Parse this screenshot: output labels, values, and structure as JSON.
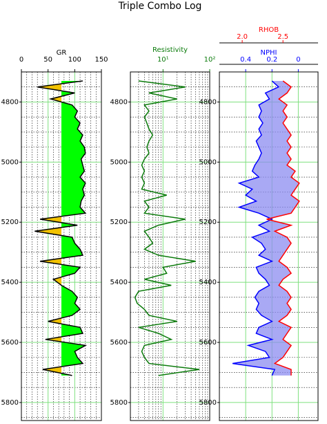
{
  "title": "Triple Combo Log",
  "chart_data": [
    {
      "type": "line",
      "xlabel": "GR",
      "xlim": [
        0,
        150
      ],
      "xticks": [
        0,
        50,
        100,
        150
      ],
      "xminorticks": [
        10,
        20,
        30,
        40,
        60,
        70,
        80,
        90,
        110,
        120,
        130,
        140
      ],
      "ylim": [
        4700,
        5860
      ],
      "yticks": [
        4800,
        5000,
        5200,
        5400,
        5600,
        5800
      ],
      "yminorticks": [
        4750,
        4850,
        4900,
        4950,
        5050,
        5100,
        5150,
        5250,
        5300,
        5350,
        5450,
        5500,
        5550,
        5650,
        5700,
        5750,
        5850
      ],
      "grid_color": "#7ee07e",
      "fill_cutoff": 75,
      "fill_below_color": "#f2c200",
      "fill_above_color": "#00ff00",
      "y": [
        4730,
        4750,
        4770,
        4790,
        4810,
        4830,
        4850,
        4870,
        4890,
        4910,
        4930,
        4950,
        4970,
        4990,
        5010,
        5030,
        5050,
        5070,
        5090,
        5110,
        5130,
        5150,
        5170,
        5190,
        5210,
        5230,
        5250,
        5270,
        5290,
        5310,
        5330,
        5350,
        5370,
        5390,
        5410,
        5430,
        5450,
        5470,
        5490,
        5510,
        5530,
        5550,
        5570,
        5590,
        5610,
        5630,
        5650,
        5670,
        5690,
        5710
      ],
      "series": [
        {
          "name": "GR",
          "color": "#000000",
          "values": [
            115,
            30,
            100,
            55,
            95,
            105,
            100,
            110,
            105,
            115,
            110,
            118,
            120,
            112,
            115,
            118,
            110,
            120,
            115,
            118,
            112,
            110,
            120,
            35,
            105,
            25,
            95,
            100,
            110,
            115,
            35,
            110,
            100,
            60,
            75,
            95,
            105,
            100,
            110,
            95,
            50,
            110,
            115,
            45,
            120,
            100,
            105,
            115,
            40,
            95
          ]
        }
      ]
    },
    {
      "type": "line",
      "xlabel": "Resistivity",
      "xscale": "log",
      "xlim": [
        2,
        100
      ],
      "xticks": [
        {
          "value": 10,
          "label": "10¹"
        },
        {
          "value": 100,
          "label": "10²"
        }
      ],
      "xminorticks": [
        3,
        4,
        5,
        6,
        7,
        8,
        9,
        20,
        30,
        40,
        50,
        60,
        70,
        80,
        90
      ],
      "ylim": [
        4700,
        5860
      ],
      "yticks": [
        4800,
        5000,
        5200,
        5400,
        5600,
        5800
      ],
      "yminorticks": [
        4750,
        4850,
        4900,
        4950,
        5050,
        5100,
        5150,
        5250,
        5300,
        5350,
        5450,
        5500,
        5550,
        5650,
        5700,
        5750,
        5850
      ],
      "grid_color": "#7ee07e",
      "y": [
        4730,
        4750,
        4770,
        4790,
        4810,
        4830,
        4850,
        4870,
        4890,
        4910,
        4930,
        4950,
        4970,
        4990,
        5010,
        5030,
        5050,
        5070,
        5090,
        5110,
        5130,
        5150,
        5170,
        5190,
        5210,
        5230,
        5250,
        5270,
        5290,
        5310,
        5330,
        5350,
        5370,
        5390,
        5410,
        5430,
        5450,
        5470,
        5490,
        5510,
        5530,
        5550,
        5570,
        5590,
        5610,
        5630,
        5650,
        5670,
        5690,
        5710
      ],
      "series": [
        {
          "name": "Resistivity",
          "color": "#0a7a0a",
          "values": [
            3,
            30,
            5,
            20,
            4,
            5,
            4,
            4.5,
            5,
            6,
            5,
            4.5,
            5,
            4,
            3.5,
            4,
            3.5,
            4,
            3.5,
            12,
            4,
            5,
            4,
            30,
            8,
            4,
            5,
            6,
            4,
            8,
            50,
            10,
            12,
            4,
            15,
            3,
            2.5,
            2.8,
            4,
            5,
            20,
            3,
            8,
            15,
            4,
            3.5,
            4,
            5,
            60,
            8
          ]
        }
      ]
    },
    {
      "type": "line",
      "xlim": [
        0.6,
        -0.15
      ],
      "xticks": [
        0.4,
        0.2,
        0.0
      ],
      "x2lim": [
        1.72,
        2.93
      ],
      "x2ticks": [
        {
          "value": 2.0,
          "label": "2.0"
        },
        2.5
      ],
      "ylim": [
        4700,
        5860
      ],
      "yticks": [
        4800,
        5000,
        5200,
        5400,
        5600,
        5800
      ],
      "yminorticks": [
        4750,
        4850,
        4900,
        4950,
        5050,
        5100,
        5150,
        5250,
        5300,
        5350,
        5450,
        5500,
        5550,
        5650,
        5700,
        5750,
        5850
      ],
      "grid_color": "#7ee07e",
      "fill_color": "#8c8cf0",
      "y": [
        4730,
        4750,
        4770,
        4790,
        4810,
        4830,
        4850,
        4870,
        4890,
        4910,
        4930,
        4950,
        4970,
        4990,
        5010,
        5030,
        5050,
        5070,
        5090,
        5110,
        5130,
        5150,
        5170,
        5190,
        5210,
        5230,
        5250,
        5270,
        5290,
        5310,
        5330,
        5350,
        5370,
        5390,
        5410,
        5430,
        5450,
        5470,
        5490,
        5510,
        5530,
        5550,
        5570,
        5590,
        5610,
        5630,
        5650,
        5670,
        5690,
        5710
      ],
      "series": [
        {
          "name": "NPHI",
          "color": "#0000ff",
          "values": [
            0.2,
            0.15,
            0.25,
            0.22,
            0.3,
            0.28,
            0.3,
            0.27,
            0.3,
            0.28,
            0.32,
            0.3,
            0.28,
            0.3,
            0.33,
            0.35,
            0.3,
            0.45,
            0.35,
            0.4,
            0.32,
            0.45,
            0.3,
            0.2,
            0.3,
            0.22,
            0.35,
            0.28,
            0.25,
            0.3,
            0.2,
            0.32,
            0.3,
            0.25,
            0.22,
            0.3,
            0.33,
            0.3,
            0.32,
            0.28,
            0.2,
            0.3,
            0.32,
            0.2,
            0.38,
            0.25,
            0.22,
            0.5,
            0.18,
            0.2
          ]
        },
        {
          "name": "RHOB",
          "color": "#ff0000",
          "axis": "x2",
          "values": [
            2.5,
            2.6,
            2.55,
            2.45,
            2.55,
            2.5,
            2.55,
            2.5,
            2.55,
            2.6,
            2.55,
            2.6,
            2.55,
            2.6,
            2.55,
            2.65,
            2.6,
            2.7,
            2.65,
            2.6,
            2.7,
            2.65,
            2.6,
            2.3,
            2.6,
            2.4,
            2.55,
            2.6,
            2.55,
            2.5,
            2.45,
            2.55,
            2.6,
            2.5,
            2.45,
            2.55,
            2.6,
            2.55,
            2.6,
            2.55,
            2.45,
            2.6,
            2.55,
            2.5,
            2.6,
            2.55,
            2.5,
            2.4,
            2.6,
            2.6
          ]
        }
      ]
    }
  ]
}
